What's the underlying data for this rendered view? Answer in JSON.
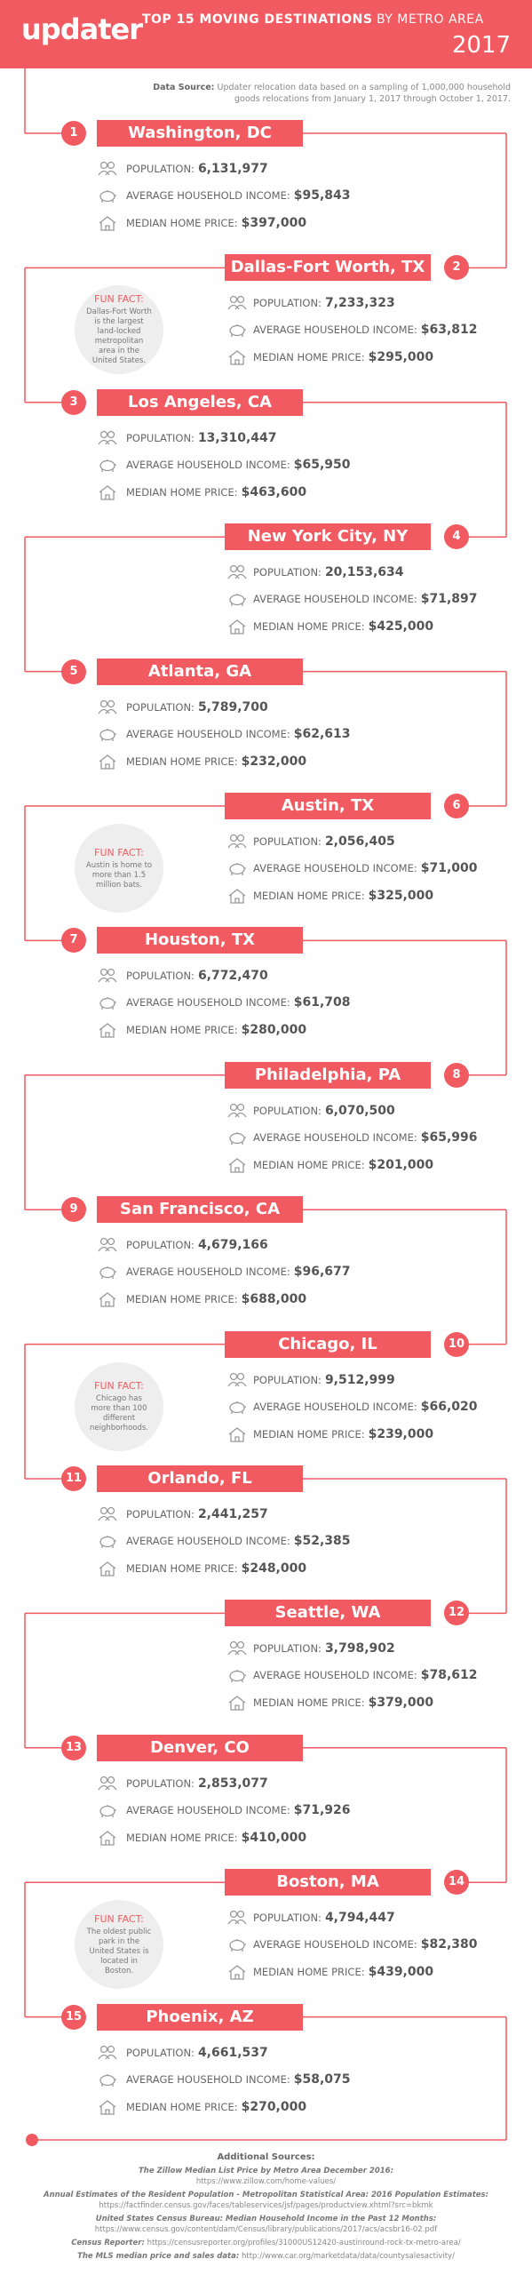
{
  "header": {
    "logo": "updater",
    "title_bold": "TOP 15 MOVING DESTINATIONS",
    "title_light": "BY METRO AREA",
    "year": "2017"
  },
  "source": {
    "label": "Data Source:",
    "text": "Updater relocation data based on a sampling of 1,000,000 household goods relocations from January 1, 2017 through October 1, 2017."
  },
  "labels": {
    "population": "POPULATION:",
    "income": "AVERAGE HOUSEHOLD INCOME:",
    "price": "MEDIAN HOME PRICE:"
  },
  "destinations": [
    {
      "rank": "1",
      "city": "Washington, DC",
      "population": "6,131,977",
      "income": "$95,843",
      "price": "$397,000"
    },
    {
      "rank": "2",
      "city": "Dallas-Fort Worth, TX",
      "population": "7,233,323",
      "income": "$63,812",
      "price": "$295,000",
      "fun_fact": {
        "label": "FUN FACT:",
        "text": "Dallas-Fort Worth is the largest land-locked metropolitan area in the United States."
      }
    },
    {
      "rank": "3",
      "city": "Los Angeles, CA",
      "population": "13,310,447",
      "income": "$65,950",
      "price": "$463,600"
    },
    {
      "rank": "4",
      "city": "New York City, NY",
      "population": "20,153,634",
      "income": "$71,897",
      "price": "$425,000"
    },
    {
      "rank": "5",
      "city": "Atlanta, GA",
      "population": "5,789,700",
      "income": "$62,613",
      "price": "$232,000"
    },
    {
      "rank": "6",
      "city": "Austin, TX",
      "population": "2,056,405",
      "income": "$71,000",
      "price": "$325,000",
      "fun_fact": {
        "label": "FUN FACT:",
        "text": "Austin is home to more than 1.5 million bats."
      }
    },
    {
      "rank": "7",
      "city": "Houston, TX",
      "population": "6,772,470",
      "income": "$61,708",
      "price": "$280,000"
    },
    {
      "rank": "8",
      "city": "Philadelphia, PA",
      "population": "6,070,500",
      "income": "$65,996",
      "price": "$201,000"
    },
    {
      "rank": "9",
      "city": "San Francisco, CA",
      "population": "4,679,166",
      "income": "$96,677",
      "price": "$688,000"
    },
    {
      "rank": "10",
      "city": "Chicago, IL",
      "population": "9,512,999",
      "income": "$66,020",
      "price": "$239,000",
      "fun_fact": {
        "label": "FUN FACT:",
        "text": "Chicago has more than 100 different neighborhoods."
      }
    },
    {
      "rank": "11",
      "city": "Orlando, FL",
      "population": "2,441,257",
      "income": "$52,385",
      "price": "$248,000"
    },
    {
      "rank": "12",
      "city": "Seattle, WA",
      "population": "3,798,902",
      "income": "$78,612",
      "price": "$379,000"
    },
    {
      "rank": "13",
      "city": "Denver, CO",
      "population": "2,853,077",
      "income": "$71,926",
      "price": "$410,000"
    },
    {
      "rank": "14",
      "city": "Boston, MA",
      "population": "4,794,447",
      "income": "$82,380",
      "price": "$439,000",
      "fun_fact": {
        "label": "FUN FACT:",
        "text": "The oldest public park in the United States is located in Boston."
      }
    },
    {
      "rank": "15",
      "city": "Phoenix, AZ",
      "population": "4,661,537",
      "income": "$58,075",
      "price": "$270,000"
    }
  ],
  "additional_sources": {
    "title": "Additional Sources:",
    "items": [
      {
        "name": "The Zillow Median List Price by Metro Area December 2016:",
        "url": "https://www.zillow.com/home-values/"
      },
      {
        "name": "Annual Estimates of the Resident Population - Metropolitan Statistical Area: 2016 Population Estimates:",
        "url": "https://factfinder.census.gov/faces/tableservices/jsf/pages/productview.xhtml?src=bkmk"
      },
      {
        "name": "United States Census Bureau: Median Household Income in the Past 12 Months:",
        "url": "https://www.census.gov/content/dam/Census/library/publications/2017/acs/acsbr16-02.pdf"
      },
      {
        "name": "Census Reporter:",
        "url": "https://censusreporter.org/profiles/31000US12420-austinround-rock-tx-metro-area/",
        "inline": true
      },
      {
        "name": "The MLS median price and sales data:",
        "url": "http://www.car.org/marketdata/data/countysalesactivity/",
        "inline": true
      }
    ]
  }
}
